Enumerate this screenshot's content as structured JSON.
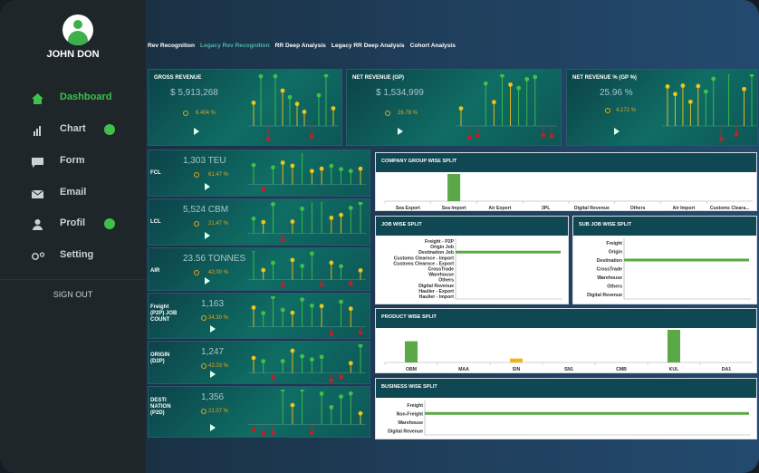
{
  "user": {
    "name": "JOHN DON"
  },
  "nav": [
    {
      "label": "Dashboard",
      "icon": "home-icon",
      "active": true,
      "dot": false
    },
    {
      "label": "Chart",
      "icon": "bar-chart-icon",
      "active": false,
      "dot": true
    },
    {
      "label": "Form",
      "icon": "form-icon",
      "active": false,
      "dot": false
    },
    {
      "label": "Email",
      "icon": "email-icon",
      "active": false,
      "dot": false
    },
    {
      "label": "Profil",
      "icon": "user-icon",
      "active": false,
      "dot": true
    },
    {
      "label": "Setting",
      "icon": "settings-icon",
      "active": false,
      "dot": false
    }
  ],
  "signout": "SIGN OUT",
  "tabs": [
    "Rev Recognition",
    "Legacy Rev Recognition",
    "RR Deep Analysis",
    "Legacy RR Deep Analysis",
    "Cohort Analysis"
  ],
  "kpis": [
    {
      "title": "GROSS REVENUE",
      "value": "$ 5,913,268",
      "pct": "6.404 %"
    },
    {
      "title": "NET REVENUE  (GP)",
      "value": "$ 1,534,999",
      "pct": "26.78 %"
    },
    {
      "title": "NET REVENUE % (GP %)",
      "value": "25.96 %",
      "pct": "4.172 %"
    }
  ],
  "side_kpis": [
    {
      "label": "FCL",
      "value": "1,303 TEU",
      "pct": "61.47 %"
    },
    {
      "label": "LCL",
      "value": "5,524 CBM",
      "pct": "21.47 %"
    },
    {
      "label": "AIR",
      "value": "23.56 TONNES",
      "pct": "42.00 %"
    },
    {
      "label": "Freight (P2P) JOB COUNT",
      "value": "1,163",
      "pct": "34.30 %"
    },
    {
      "label": "ORIGIN (D2P)",
      "value": "1,247",
      "pct": "42.03 %"
    },
    {
      "label": "DESTI NATION (P2D)",
      "value": "1,356",
      "pct": "21.07 %"
    }
  ],
  "colors": {
    "green": "#3ec14a",
    "yellow": "#f0c419",
    "red": "#c41e2a",
    "bar": "#5aa846"
  },
  "chart_data": [
    {
      "type": "bar",
      "title": "COMPANY GROUP WISE SPLIT",
      "categories": [
        "Sea Export",
        "Sea Import",
        "Air Export",
        "3PL",
        "Digital Revenue",
        "Others",
        "Air Import",
        "Customs Cleara..."
      ],
      "values": [
        0,
        100,
        0,
        0,
        0,
        0,
        0,
        0
      ]
    },
    {
      "type": "bar",
      "title": "JOB WISE SPLIT",
      "orientation": "horizontal",
      "categories": [
        "Freight - P2P",
        "Origin Job",
        "Destination Job",
        "Customs Clearnce - Import",
        "Customs Clearnce - Export",
        "CrossTrade",
        "Warehouse",
        "Others",
        "Digital Revenue",
        "Haulier - Export",
        "Haulier - Import"
      ],
      "values": [
        0,
        0,
        100,
        0,
        0,
        0,
        0,
        0,
        0,
        0,
        0
      ]
    },
    {
      "type": "bar",
      "title": "SUB JOB WISE SPLIT",
      "orientation": "horizontal",
      "categories": [
        "Freight",
        "Origin",
        "Destination",
        "CrossTrade",
        "Warehouse",
        "Others",
        "Digital Revenue"
      ],
      "values": [
        0,
        0,
        100,
        0,
        0,
        0,
        0
      ]
    },
    {
      "type": "bar",
      "title": "PRODUCT WISE SPLIT",
      "categories": [
        "OBM",
        "MAA",
        "SIN",
        "SN1",
        "CMB",
        "KUL",
        "DA1"
      ],
      "values": [
        65,
        0,
        12,
        0,
        0,
        100,
        0
      ]
    },
    {
      "type": "bar",
      "title": "BUSINESS WISE SPLIT",
      "orientation": "horizontal",
      "categories": [
        "Freight",
        "Non-Freight",
        "Warehouse",
        "Digital Revenue"
      ],
      "values": [
        0,
        100,
        0,
        0
      ]
    }
  ]
}
